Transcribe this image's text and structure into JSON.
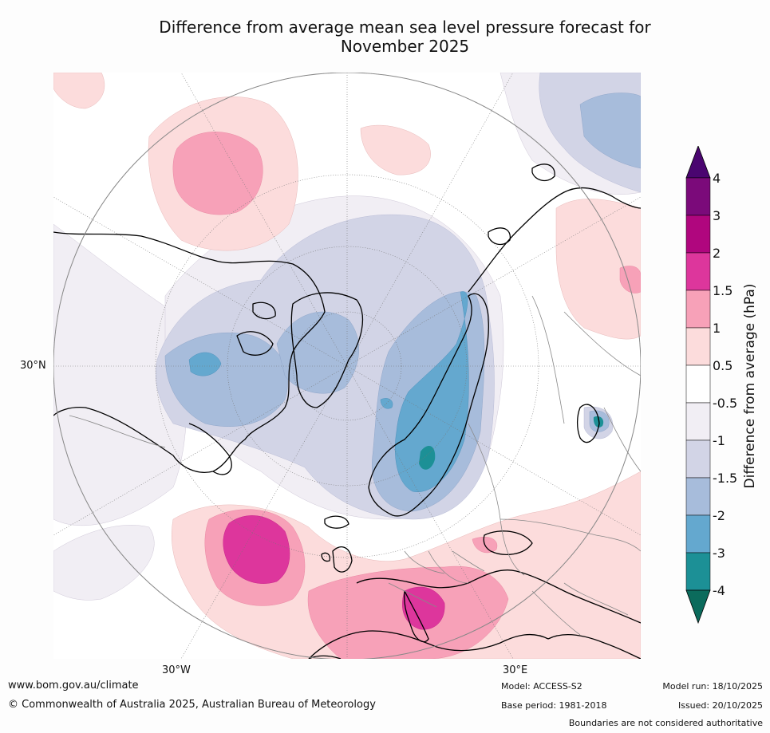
{
  "title": {
    "line1": "Difference from average mean sea level pressure forecast for",
    "line2": "November 2025"
  },
  "axis_labels": {
    "lat30n": "30°N",
    "lon30w": "30°W",
    "lon30e": "30°E"
  },
  "colorbar": {
    "title": "Difference from average (hPa)",
    "ticks": [
      "4",
      "3",
      "2",
      "1.5",
      "1",
      "0.5",
      "-0.5",
      "-1",
      "-1.5",
      "-2",
      "-3",
      "-4"
    ],
    "colors": [
      "#4a0570",
      "#7b0a7a",
      "#b0067e",
      "#dd369c",
      "#f7a1b8",
      "#fcdcdc",
      "#ffffff",
      "#f1eef4",
      "#d2d4e6",
      "#a7bcdb",
      "#64a8cf",
      "#1c9096",
      "#0b6b5c"
    ]
  },
  "footer": {
    "website": "www.bom.gov.au/climate",
    "copyright": "© Commonwealth of Australia 2025, Australian Bureau of Meteorology",
    "model": "Model: ACCESS-S2",
    "base_period": "Base period: 1981-2018",
    "model_run": "Model run: 18/10/2025",
    "issued": "Issued: 20/10/2025",
    "disclaimer": "Boundaries are not considered authoritative"
  }
}
